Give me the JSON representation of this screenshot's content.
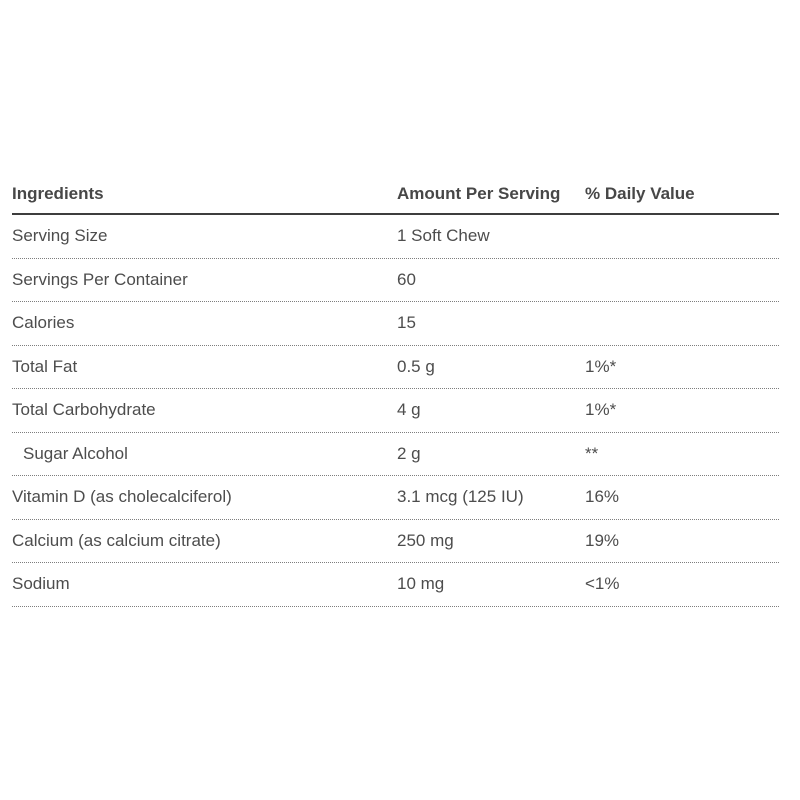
{
  "table": {
    "columns": [
      {
        "key": "label",
        "label": "Ingredients"
      },
      {
        "key": "amount",
        "label": "Amount Per Serving"
      },
      {
        "key": "dv",
        "label": "% Daily Value"
      }
    ],
    "rows": [
      {
        "label": "Serving Size",
        "amount": "1 Soft Chew",
        "dv": "",
        "indent": false
      },
      {
        "label": "Servings Per Container",
        "amount": "60",
        "dv": "",
        "indent": false
      },
      {
        "label": "Calories",
        "amount": "15",
        "dv": "",
        "indent": false
      },
      {
        "label": "Total Fat",
        "amount": "0.5 g",
        "dv": "1%*",
        "indent": false
      },
      {
        "label": "Total Carbohydrate",
        "amount": "4 g",
        "dv": "1%*",
        "indent": false
      },
      {
        "label": "Sugar Alcohol",
        "amount": "2 g",
        "dv": "**",
        "indent": true
      },
      {
        "label": "Vitamin D (as cholecalciferol)",
        "amount": "3.1 mcg (125 IU)",
        "dv": "16%",
        "indent": false
      },
      {
        "label": "Calcium (as calcium citrate)",
        "amount": "250 mg",
        "dv": "19%",
        "indent": false
      },
      {
        "label": "Sodium",
        "amount": "10 mg",
        "dv": "<1%",
        "indent": false
      }
    ]
  },
  "colors": {
    "background": "#ffffff",
    "text": "#4d4d4d",
    "header_text": "#474747",
    "solid_rule": "#3d3d3d",
    "dotted_rule": "#7e7e7e"
  }
}
